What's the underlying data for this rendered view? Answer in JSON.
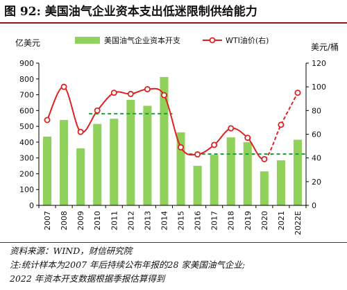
{
  "figure": {
    "title": "图 92:  美国油气企业资本支出低迷限制供给能力"
  },
  "notes": {
    "source": "资料来源：WIND，财信研究院",
    "note_line1": "注:统计样本为2007 年后持续公布年报的28 家美国油气企业;",
    "note_line2": "2022 年资本开支数据根据季报估算得到"
  },
  "colors": {
    "bar": "#8fd15a",
    "line": "#e02020",
    "reference": "#1aa336",
    "axis": "#000000",
    "title_rule": "#8c1a1a"
  },
  "chart_data": {
    "type": "bar",
    "categories": [
      "2007",
      "2008",
      "2009",
      "2010",
      "2011",
      "2012",
      "2013",
      "2014",
      "2015",
      "2016",
      "2017",
      "2018",
      "2019",
      "2020",
      "2021",
      "2022E"
    ],
    "left_unit": "亿美元",
    "right_unit": "美元/桶",
    "series": [
      {
        "name": "美国油气企业资本开支",
        "type": "bar",
        "axis": "left",
        "values": [
          435,
          540,
          360,
          515,
          548,
          668,
          630,
          812,
          462,
          250,
          320,
          430,
          400,
          215,
          285,
          415
        ]
      },
      {
        "name": "WTI油价(右)",
        "type": "line",
        "axis": "right",
        "marker": "circle",
        "dashed_last_segments": 2,
        "values": [
          72,
          100,
          62,
          80,
          95,
          94,
          98,
          93,
          49,
          43,
          51,
          65,
          57,
          39,
          68,
          95
        ]
      }
    ],
    "reference_lines": [
      {
        "axis": "left",
        "value": 580,
        "from": "2010",
        "to": "2014",
        "style": "dashed"
      },
      {
        "axis": "left",
        "value": 325,
        "from": "2016",
        "to": "2022E",
        "style": "dashed"
      }
    ],
    "ylim_left": [
      0,
      900
    ],
    "yticks_left": [
      0,
      100,
      200,
      300,
      400,
      500,
      600,
      700,
      800,
      900
    ],
    "ylim_right": [
      0,
      120
    ],
    "yticks_right": [
      0,
      20,
      40,
      60,
      80,
      100,
      120
    ],
    "legend_position": "top",
    "grid": false
  }
}
